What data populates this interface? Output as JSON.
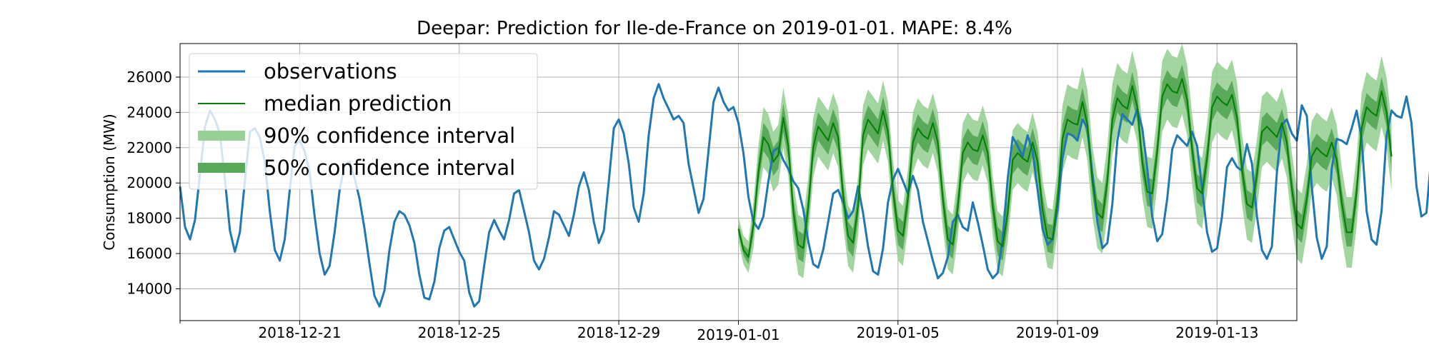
{
  "chart_data": {
    "type": "line",
    "title": "Deepar: Prediction for Ile-de-France on 2019-01-01. MAPE: 8.4%",
    "xlabel": "",
    "ylabel": "Consumption (MW)",
    "xlim": [
      "2018-12-18",
      "2019-01-15"
    ],
    "ylim": [
      12200,
      27900
    ],
    "grid": true,
    "legend_position": "top-left",
    "x_ticks": [
      "2018-12-21",
      "2018-12-25",
      "2018-12-29",
      "2019-01-01",
      "2019-01-05",
      "2019-01-09",
      "2019-01-13"
    ],
    "y_ticks": [
      14000,
      16000,
      18000,
      20000,
      22000,
      24000,
      26000
    ],
    "legend": [
      {
        "label": "observations",
        "kind": "line",
        "color": "#1f77b4"
      },
      {
        "label": "median prediction",
        "kind": "line",
        "color": "#008000"
      },
      {
        "label": "90% confidence interval",
        "kind": "band",
        "color": "#98d095"
      },
      {
        "label": "50% confidence interval",
        "kind": "band",
        "color": "#57a857"
      }
    ],
    "observations": {
      "name": "observations",
      "color": "#1f77b4",
      "step_hours": 3,
      "start": "2018-12-18",
      "values": [
        19800,
        17500,
        16800,
        17900,
        20500,
        23200,
        24100,
        23600,
        22800,
        20200,
        17300,
        16100,
        17200,
        20100,
        22900,
        23100,
        22600,
        21200,
        18400,
        16200,
        15600,
        16800,
        19600,
        22100,
        22400,
        21800,
        20600,
        18100,
        16000,
        14800,
        15300,
        17200,
        19600,
        21000,
        21200,
        20300,
        19100,
        17400,
        15400,
        13600,
        13000,
        13900,
        16200,
        17800,
        18400,
        18200,
        17600,
        16600,
        14800,
        13500,
        13400,
        14400,
        16300,
        17300,
        17500,
        16800,
        16100,
        15600,
        13800,
        13000,
        13300,
        15300,
        17200,
        17900,
        17300,
        16800,
        17900,
        19400,
        19600,
        18400,
        17200,
        15600,
        15100,
        15700,
        16900,
        18400,
        18200,
        17600,
        17000,
        18200,
        19800,
        20600,
        19600,
        17800,
        16600,
        17300,
        20100,
        23100,
        23600,
        22800,
        21100,
        18600,
        17800,
        19400,
        22700,
        24800,
        25600,
        24800,
        24200,
        23600,
        23800,
        23400,
        21100,
        19700,
        18300,
        19100,
        21800,
        24600,
        25400,
        24600,
        24100,
        24300,
        23400,
        21700,
        19200,
        17800,
        17400,
        18100,
        20100,
        21800,
        22000,
        21300,
        20800,
        20100,
        19700,
        18500,
        16700,
        15400,
        15200,
        16200,
        17800,
        19400,
        19600,
        18900,
        18000,
        18400,
        19800,
        18300,
        16400,
        15000,
        14800,
        16300,
        18900,
        20200,
        20800,
        20100,
        19400,
        20400,
        19600,
        17800,
        16700,
        15600,
        14600,
        14900,
        15800,
        17800,
        18200,
        17500,
        17300,
        18900,
        17800,
        16500,
        15100,
        14600,
        14900,
        16800,
        20200,
        22600,
        22100,
        21500,
        22700,
        21800,
        19600,
        17400,
        16500,
        16800,
        18500,
        21400,
        22800,
        22700,
        22400,
        23600,
        23100,
        20500,
        17800,
        16300,
        16600,
        18800,
        22400,
        23900,
        23600,
        23300,
        24200,
        23100,
        20800,
        18100,
        16700,
        17100,
        19100,
        21900,
        22700,
        22400,
        22100,
        22900,
        22100,
        19700,
        17200,
        16100,
        16300,
        18100,
        20900,
        21400,
        20900,
        20700,
        22200,
        21100,
        18100,
        16200,
        15700,
        16400,
        20600,
        23300,
        23600,
        22800,
        22400,
        24400,
        23800,
        19800,
        16900,
        15700,
        16400,
        20800,
        22500,
        22400,
        22200,
        23100,
        24100,
        22500,
        18400,
        16800,
        16500,
        18400,
        22700,
        24100,
        23800,
        23700,
        24900,
        23400,
        19800,
        18100,
        18300,
        21600,
        25500,
        25800,
        25100,
        24600,
        25300,
        23800,
        19500,
        17400,
        17800,
        21400,
        24600,
        25200,
        24800,
        24400,
        24900,
        23400,
        19600,
        17600,
        15900,
        17400,
        20400,
        21300,
        21000,
        20800,
        21600,
        21100,
        19200,
        18100,
        16100,
        15500,
        17800,
        20300,
        19700,
        19000,
        18200,
        19600,
        18200,
        16100,
        14700,
        14900,
        17800,
        22000,
        22500,
        22300,
        21900,
        22200,
        21200,
        20200,
        19900
      ]
    },
    "forecast": {
      "start": "2019-01-01",
      "step_hours": 3,
      "median_name": "median prediction",
      "median_color": "#008000",
      "median": [
        17400,
        16200,
        15800,
        17600,
        20600,
        22600,
        22200,
        21200,
        21600,
        23700,
        22100,
        18400,
        16500,
        16300,
        18600,
        22000,
        23200,
        22800,
        22400,
        23400,
        22600,
        19300,
        17000,
        16600,
        18700,
        22700,
        23600,
        23200,
        22800,
        24100,
        22900,
        19600,
        17300,
        17000,
        19100,
        22300,
        23100,
        22700,
        22500,
        23400,
        22300,
        19100,
        16800,
        16500,
        18600,
        21700,
        22300,
        21900,
        21800,
        22700,
        21700,
        18700,
        16700,
        16400,
        18300,
        21300,
        21700,
        21400,
        21200,
        22300,
        21200,
        18500,
        16900,
        16800,
        19000,
        22500,
        23600,
        23400,
        23300,
        24600,
        23300,
        20100,
        18300,
        18000,
        20100,
        23600,
        24800,
        24400,
        24200,
        25500,
        24300,
        21200,
        19500,
        19400,
        21800,
        24900,
        25600,
        25200,
        25100,
        25900,
        24700,
        21900,
        19700,
        19400,
        21400,
        24300,
        24900,
        24600,
        24400,
        25000,
        23700,
        20800,
        18800,
        18600,
        20500,
        22900,
        23200,
        22900,
        22600,
        23400,
        22300,
        19700,
        17700,
        17400,
        19100,
        21500,
        22000,
        21700,
        21500,
        22300,
        21300,
        18900,
        17200,
        17200,
        19500,
        23100,
        24300,
        24000,
        23800,
        25200,
        24000,
        21500
      ],
      "band50_halfwidth": [
        300,
        300,
        400,
        600,
        700,
        800,
        800,
        800,
        800,
        800,
        800,
        800,
        800,
        800,
        800,
        800,
        800,
        800,
        800,
        800,
        800,
        800,
        800,
        800,
        800,
        800,
        800,
        800,
        800,
        800,
        800,
        800,
        800,
        800,
        800,
        800,
        800,
        800,
        800,
        800,
        800,
        800,
        800,
        800,
        800,
        800,
        800,
        800,
        800,
        800,
        800,
        800,
        800,
        800,
        800,
        800,
        800,
        800,
        800,
        800,
        800,
        800,
        800,
        800,
        800,
        800,
        800,
        800,
        800,
        800,
        800,
        800,
        800,
        800,
        800,
        800,
        800,
        800,
        800,
        800,
        800,
        800,
        800,
        800,
        800,
        800,
        800,
        800,
        800,
        800,
        800,
        800,
        800,
        800,
        800,
        800,
        800,
        800,
        800,
        800,
        800,
        800,
        800,
        800,
        800,
        800,
        800,
        800,
        800,
        800,
        800,
        800,
        800,
        800,
        800,
        800,
        800,
        800,
        800,
        800,
        800,
        800,
        800,
        800,
        800,
        800,
        800,
        800,
        800,
        800,
        800,
        800
      ],
      "band90_halfwidth": [
        700,
        800,
        900,
        1300,
        1500,
        1700,
        1700,
        1700,
        1700,
        1700,
        1700,
        1700,
        1700,
        1700,
        1700,
        1700,
        1700,
        1700,
        1700,
        1700,
        1700,
        1700,
        1700,
        1700,
        1700,
        1700,
        1700,
        1700,
        1700,
        1700,
        1700,
        1700,
        1700,
        1700,
        1700,
        1700,
        1700,
        1700,
        1700,
        1700,
        1700,
        1700,
        1700,
        1700,
        1700,
        1700,
        1700,
        1700,
        1700,
        1700,
        1700,
        1700,
        1700,
        1700,
        1700,
        1700,
        1700,
        1700,
        1700,
        1700,
        1700,
        1700,
        1700,
        1700,
        1800,
        1900,
        2000,
        2000,
        2000,
        2000,
        2000,
        2000,
        2000,
        2000,
        2000,
        2000,
        2000,
        2000,
        2000,
        2000,
        2000,
        2000,
        2000,
        2000,
        2000,
        2000,
        2000,
        2000,
        2000,
        2000,
        2000,
        2000,
        2000,
        2000,
        2000,
        2000,
        2000,
        2000,
        2000,
        2000,
        2000,
        2000,
        2000,
        2000,
        2000,
        2000,
        2000,
        2000,
        2000,
        2000,
        2000,
        2000,
        2000,
        2000,
        2000,
        2000,
        2000,
        2000,
        2000,
        2000,
        2000,
        2000,
        2000,
        2000,
        2000,
        2000,
        2000,
        2000,
        2000,
        2000,
        2000,
        2000
      ],
      "band90_color": "#98d095",
      "band50_color": "#57a857"
    }
  }
}
